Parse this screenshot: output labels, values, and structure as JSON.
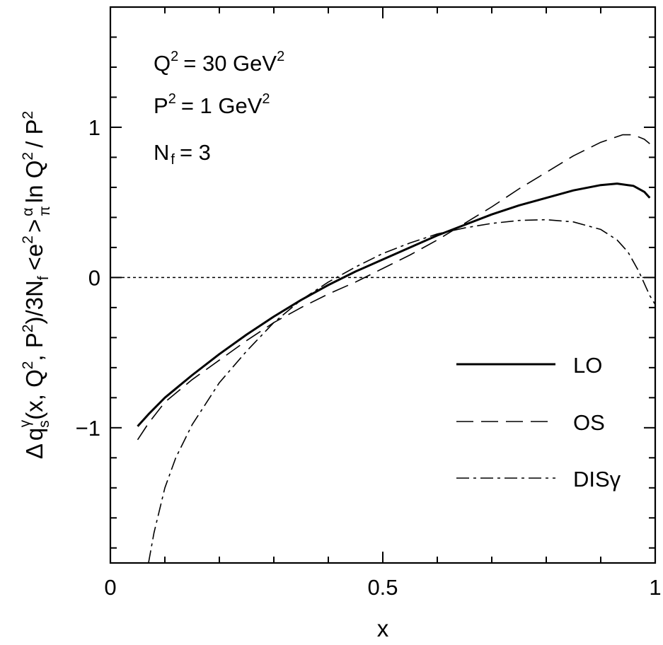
{
  "chart_data": {
    "type": "line",
    "title": "",
    "xlabel": "x",
    "xlim": [
      0,
      1
    ],
    "ylim": [
      -1.9,
      1.8
    ],
    "x_ticks": [
      {
        "value": 0,
        "label": "0"
      },
      {
        "value": 0.5,
        "label": "0.5"
      },
      {
        "value": 1,
        "label": "1"
      }
    ],
    "y_ticks": [
      {
        "value": -1,
        "label": "−1"
      },
      {
        "value": 0,
        "label": "0"
      },
      {
        "value": 1,
        "label": "1"
      }
    ],
    "x_minor_step": 0.1,
    "y_minor_step": 0.2,
    "reference_line": {
      "y": 0,
      "style": "dotted"
    },
    "ylabel_parts": {
      "delta": "Δ",
      "q": "q",
      "sub_s": "s",
      "sup_gamma": "γ",
      "args": "(x, Q",
      "sup_2a": "2",
      "comma_p": ", P",
      "sup_2b": "2",
      "close": ")/3N",
      "sub_f": "f",
      "e_part": "<e",
      "sup_2c": "2",
      "gt": ">",
      "alpha": "α",
      "pi": "π",
      "ln_q": "ln Q",
      "sup_2d": "2",
      "slash_p": "/ P",
      "sup_2e": "2"
    },
    "annotations": {
      "q2": {
        "base": "Q",
        "sup": "2",
        "rest": "= 30 GeV",
        "sup2": "2"
      },
      "p2": {
        "base": "P",
        "sup": "2",
        "rest": "=  1 GeV",
        "sup2": "2"
      },
      "nf": {
        "base": "N",
        "sub": "f",
        "rest": "= 3"
      }
    },
    "legend": {
      "position": "lower-right",
      "entries": [
        {
          "label": "LO",
          "style": "solid"
        },
        {
          "label": "OS",
          "style": "dashed"
        },
        {
          "label": "DISγ",
          "style": "dashdot"
        }
      ]
    },
    "series": [
      {
        "name": "LO",
        "style": "solid",
        "x": [
          0.05,
          0.07,
          0.1,
          0.15,
          0.2,
          0.25,
          0.3,
          0.35,
          0.4,
          0.45,
          0.5,
          0.55,
          0.6,
          0.65,
          0.7,
          0.75,
          0.8,
          0.85,
          0.9,
          0.93,
          0.96,
          0.98,
          0.99
        ],
        "y": [
          -0.99,
          -0.91,
          -0.8,
          -0.65,
          -0.51,
          -0.38,
          -0.26,
          -0.15,
          -0.05,
          0.04,
          0.12,
          0.2,
          0.28,
          0.35,
          0.42,
          0.48,
          0.53,
          0.58,
          0.615,
          0.625,
          0.61,
          0.57,
          0.53
        ]
      },
      {
        "name": "OS",
        "style": "dashed",
        "x": [
          0.05,
          0.07,
          0.1,
          0.15,
          0.2,
          0.25,
          0.3,
          0.35,
          0.4,
          0.45,
          0.5,
          0.55,
          0.6,
          0.65,
          0.7,
          0.75,
          0.8,
          0.85,
          0.9,
          0.94,
          0.96,
          0.98,
          0.99
        ],
        "y": [
          -1.08,
          -0.97,
          -0.83,
          -0.68,
          -0.55,
          -0.42,
          -0.3,
          -0.2,
          -0.11,
          -0.03,
          0.06,
          0.15,
          0.25,
          0.36,
          0.47,
          0.59,
          0.7,
          0.81,
          0.9,
          0.95,
          0.95,
          0.92,
          0.89
        ]
      },
      {
        "name": "DISγ",
        "style": "dashdot",
        "x": [
          0.07,
          0.08,
          0.1,
          0.12,
          0.15,
          0.2,
          0.25,
          0.3,
          0.35,
          0.4,
          0.45,
          0.5,
          0.55,
          0.6,
          0.65,
          0.7,
          0.75,
          0.8,
          0.85,
          0.9,
          0.93,
          0.95,
          0.97,
          0.98,
          0.99,
          1.0
        ],
        "y": [
          -1.9,
          -1.7,
          -1.4,
          -1.2,
          -0.98,
          -0.7,
          -0.49,
          -0.3,
          -0.15,
          -0.03,
          0.07,
          0.16,
          0.23,
          0.29,
          0.33,
          0.36,
          0.38,
          0.385,
          0.37,
          0.32,
          0.25,
          0.17,
          0.04,
          -0.04,
          -0.12,
          -0.18
        ]
      }
    ]
  }
}
